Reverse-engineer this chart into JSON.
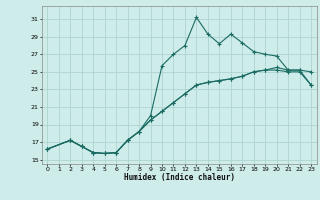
{
  "title": "",
  "xlabel": "Humidex (Indice chaleur)",
  "background_color": "#ceecea",
  "grid_color": "#aed4d0",
  "line_color": "#1a6b62",
  "xlim": [
    -0.5,
    23.5
  ],
  "ylim": [
    14.5,
    32.5
  ],
  "xtick_values": [
    0,
    1,
    2,
    3,
    4,
    5,
    6,
    7,
    8,
    9,
    10,
    11,
    12,
    13,
    14,
    15,
    16,
    17,
    18,
    19,
    20,
    21,
    22,
    23
  ],
  "ytick_values": [
    15,
    17,
    19,
    21,
    23,
    25,
    27,
    29,
    31
  ],
  "curve1_x": [
    0,
    2,
    3,
    4,
    5,
    6,
    7,
    8,
    9,
    10,
    11,
    12,
    13,
    14,
    15,
    16,
    17,
    18,
    19,
    20,
    21,
    22,
    23
  ],
  "curve1_y": [
    16.2,
    17.2,
    16.5,
    15.8,
    15.7,
    15.8,
    17.2,
    18.2,
    20.0,
    25.7,
    27.0,
    28.0,
    31.2,
    29.3,
    28.2,
    29.3,
    28.3,
    27.3,
    27.0,
    26.8,
    25.2,
    25.2,
    25.0
  ],
  "curve2_x": [
    0,
    2,
    3,
    4,
    5,
    6,
    7,
    8,
    9,
    10,
    11,
    12,
    13,
    14,
    15,
    16,
    17,
    18,
    19,
    20,
    21,
    22,
    23
  ],
  "curve2_y": [
    16.2,
    17.2,
    16.5,
    15.8,
    15.7,
    15.8,
    17.2,
    18.2,
    19.5,
    20.5,
    21.5,
    22.5,
    23.5,
    23.8,
    24.0,
    24.2,
    24.5,
    25.0,
    25.2,
    25.2,
    25.0,
    25.0,
    23.5
  ],
  "curve3_x": [
    0,
    2,
    3,
    4,
    5,
    6,
    7,
    8,
    9,
    10,
    11,
    12,
    13,
    14,
    15,
    16,
    17,
    18,
    19,
    20,
    21,
    22,
    23
  ],
  "curve3_y": [
    16.2,
    17.2,
    16.5,
    15.8,
    15.7,
    15.8,
    17.2,
    18.2,
    19.5,
    20.5,
    21.5,
    22.5,
    23.5,
    23.8,
    24.0,
    24.2,
    24.5,
    25.0,
    25.2,
    25.5,
    25.2,
    25.2,
    23.5
  ]
}
